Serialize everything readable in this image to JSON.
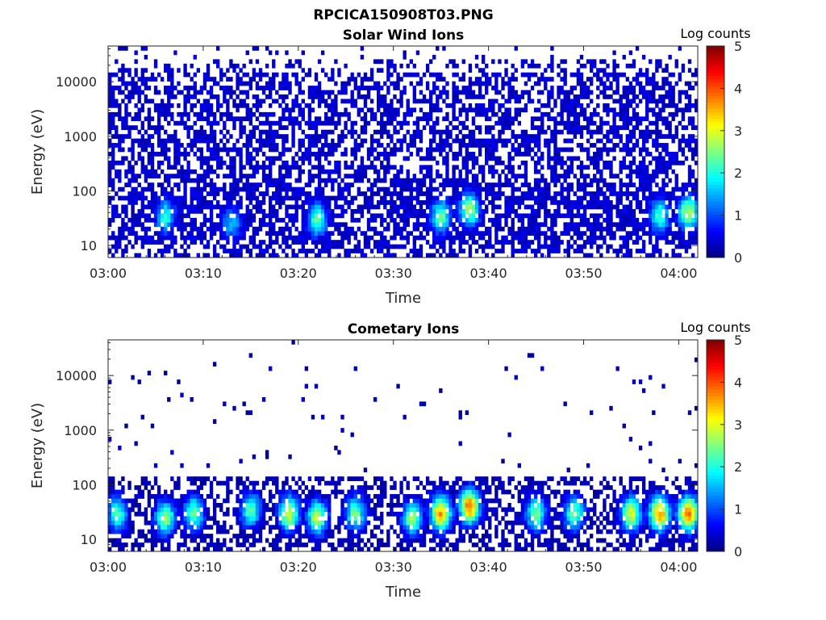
{
  "figure_title": "RPCICA150908T03.PNG",
  "chart_data": [
    {
      "type": "heatmap",
      "title": "Solar Wind Ions",
      "xlabel": "Time",
      "ylabel": "Energy (eV)",
      "x_ticks": [
        "03:00",
        "03:10",
        "03:20",
        "03:30",
        "03:40",
        "03:50",
        "04:00"
      ],
      "xlim": [
        "03:00",
        "04:02"
      ],
      "y_scale": "log",
      "y_ticks": [
        "10",
        "100",
        "1000",
        "10000"
      ],
      "ylim": [
        6,
        45000
      ],
      "colorbar": {
        "label": "Log counts",
        "ticks": [
          "0",
          "1",
          "2",
          "3",
          "4",
          "5"
        ],
        "range": [
          0,
          5
        ],
        "colormap": "jet"
      },
      "hotspots": [
        {
          "time": "03:06",
          "energy": 35,
          "value": 2.0
        },
        {
          "time": "03:13",
          "energy": 25,
          "value": 1.6
        },
        {
          "time": "03:22",
          "energy": 30,
          "value": 2.3
        },
        {
          "time": "03:35",
          "energy": 35,
          "value": 2.4
        },
        {
          "time": "03:38",
          "energy": 45,
          "value": 2.6
        },
        {
          "time": "03:58",
          "energy": 35,
          "value": 2.2
        },
        {
          "time": "04:01",
          "energy": 40,
          "value": 2.8
        }
      ],
      "background_level": 0.2,
      "background_density": 0.55
    },
    {
      "type": "heatmap",
      "title": "Cometary Ions",
      "xlabel": "Time",
      "ylabel": "Energy (eV)",
      "x_ticks": [
        "03:00",
        "03:10",
        "03:20",
        "03:30",
        "03:40",
        "03:50",
        "04:00"
      ],
      "xlim": [
        "03:00",
        "04:02"
      ],
      "y_scale": "log",
      "y_ticks": [
        "10",
        "100",
        "1000",
        "10000"
      ],
      "ylim": [
        6,
        45000
      ],
      "colorbar": {
        "label": "Log counts",
        "ticks": [
          "0",
          "1",
          "2",
          "3",
          "4",
          "5"
        ],
        "range": [
          0,
          5
        ],
        "colormap": "jet"
      },
      "hotspots": [
        {
          "time": "03:01",
          "energy": 30,
          "value": 2.2
        },
        {
          "time": "03:06",
          "energy": 25,
          "value": 2.6
        },
        {
          "time": "03:09",
          "energy": 30,
          "value": 2.4
        },
        {
          "time": "03:15",
          "energy": 35,
          "value": 2.3
        },
        {
          "time": "03:19",
          "energy": 30,
          "value": 3.0
        },
        {
          "time": "03:22",
          "energy": 25,
          "value": 2.8
        },
        {
          "time": "03:26",
          "energy": 30,
          "value": 2.4
        },
        {
          "time": "03:32",
          "energy": 25,
          "value": 2.6
        },
        {
          "time": "03:35",
          "energy": 30,
          "value": 3.6
        },
        {
          "time": "03:38",
          "energy": 40,
          "value": 3.8
        },
        {
          "time": "03:45",
          "energy": 30,
          "value": 2.5
        },
        {
          "time": "03:49",
          "energy": 30,
          "value": 2.4
        },
        {
          "time": "03:55",
          "energy": 30,
          "value": 3.0
        },
        {
          "time": "03:58",
          "energy": 30,
          "value": 3.7
        },
        {
          "time": "04:01",
          "energy": 30,
          "value": 3.9
        }
      ],
      "background_level": 0.05,
      "background_density": 0.02
    }
  ]
}
